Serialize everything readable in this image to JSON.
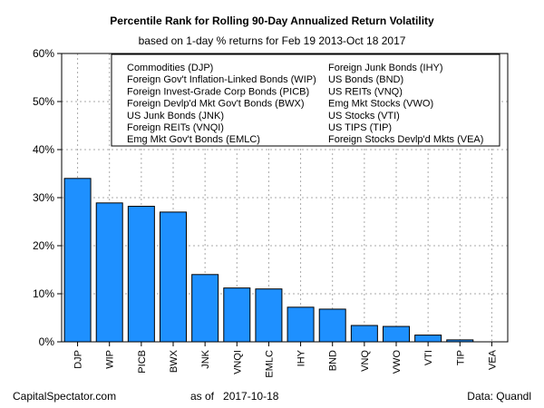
{
  "chart_data": {
    "type": "bar",
    "title": "Percentile Rank for Rolling 90-Day Annualized Return Volatility",
    "subtitle": "based on 1-day % returns for Feb 19 2013-Oct 18 2017",
    "categories": [
      "DJP",
      "WIP",
      "PICB",
      "BWX",
      "JNK",
      "VNQI",
      "EMLC",
      "IHY",
      "BND",
      "VNQ",
      "VWO",
      "VTI",
      "TIP",
      "VEA"
    ],
    "values": [
      34.0,
      28.9,
      28.2,
      27.0,
      14.0,
      11.2,
      11.0,
      7.2,
      6.8,
      3.4,
      3.2,
      1.4,
      0.4,
      0.0
    ],
    "ylim": [
      0,
      60
    ],
    "yticks": [
      0,
      10,
      20,
      30,
      40,
      50,
      60
    ],
    "ytick_labels": [
      "0%",
      "10%",
      "20%",
      "30%",
      "40%",
      "50%",
      "60%"
    ],
    "xlabel": "",
    "ylabel": "",
    "grid": true,
    "bar_color": "#1E90FF",
    "legend_position": "top",
    "legend": [
      "Commodities (DJP)",
      "Foreign Gov't Inflation-Linked Bonds (WIP)",
      "Foreign Invest-Grade Corp Bonds (PICB)",
      "Foreign Devlp'd Mkt Gov't Bonds (BWX)",
      "US Junk Bonds (JNK)",
      "Foreign REITs (VNQI)",
      "Emg Mkt Gov't Bonds (EMLC)",
      "Foreign Junk Bonds (IHY)",
      "US Bonds (BND)",
      "US REITs (VNQ)",
      "Emg Mkt Stocks (VWO)",
      "US Stocks (VTI)",
      "US TIPS (TIP)",
      "Foreign Stocks Devlp'd Mkts (VEA)"
    ]
  },
  "footer": {
    "source": "CapitalSpectator.com",
    "as_of_label": "as of",
    "as_of_date": "2017-10-18",
    "data_credit": "Data: Quandl"
  }
}
